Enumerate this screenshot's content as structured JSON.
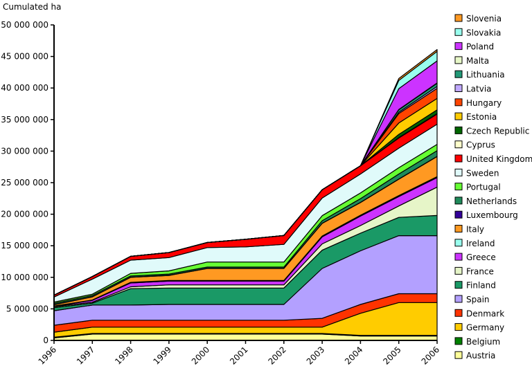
{
  "chart_data": {
    "type": "area",
    "stacked": true,
    "title": "",
    "ylabel": "Cumulated ha",
    "xlabel": "",
    "ylim": [
      0,
      50000000
    ],
    "yticks": [
      0,
      5000000,
      10000000,
      15000000,
      20000000,
      25000000,
      30000000,
      35000000,
      40000000,
      45000000,
      50000000
    ],
    "ytick_labels": [
      "0",
      "5 000 000",
      "10 000 000",
      "15 000 000",
      "20 000 000",
      "25 000 000",
      "30 000 000",
      "35 000 000",
      "40 000 000",
      "45 000 000",
      "50 000 000"
    ],
    "categories": [
      "1996",
      "1997",
      "1998",
      "1999",
      "2000",
      "2001",
      "2002",
      "2003",
      "2004",
      "2005",
      "2006"
    ],
    "legend_position": "right",
    "series": [
      {
        "name": "Austria",
        "color": "#ffff99",
        "values": [
          400000,
          1000000,
          1000000,
          1000000,
          1000000,
          1000000,
          1000000,
          1000000,
          700000,
          700000,
          700000
        ]
      },
      {
        "name": "Belgium",
        "color": "#008000",
        "values": [
          100000,
          100000,
          100000,
          100000,
          100000,
          100000,
          100000,
          100000,
          100000,
          100000,
          100000
        ]
      },
      {
        "name": "Germany",
        "color": "#ffcc00",
        "values": [
          800000,
          1000000,
          1000000,
          1000000,
          1000000,
          1000000,
          1000000,
          1000000,
          3500000,
          5200000,
          5200000
        ]
      },
      {
        "name": "Denmark",
        "color": "#ff3300",
        "values": [
          1100000,
          1100000,
          1100000,
          1100000,
          1100000,
          1100000,
          1100000,
          1400000,
          1400000,
          1400000,
          1400000
        ]
      },
      {
        "name": "Spain",
        "color": "#b3a0ff",
        "values": [
          2300000,
          2400000,
          2400000,
          2500000,
          2500000,
          2500000,
          2500000,
          7900000,
          8500000,
          9200000,
          9200000
        ]
      },
      {
        "name": "Finland",
        "color": "#1a9966",
        "values": [
          500000,
          300000,
          2600000,
          2600000,
          2600000,
          2600000,
          2600000,
          2900000,
          2800000,
          2900000,
          3200000
        ]
      },
      {
        "name": "France",
        "color": "#e6f5c8",
        "values": [
          150000,
          150000,
          300000,
          500000,
          500000,
          500000,
          500000,
          1000000,
          1200000,
          1800000,
          4500000
        ]
      },
      {
        "name": "Greece",
        "color": "#cc33ff",
        "values": [
          50000,
          300000,
          600000,
          600000,
          600000,
          600000,
          600000,
          1100000,
          1500000,
          1500000,
          1500000
        ]
      },
      {
        "name": "Ireland",
        "color": "#99ffee",
        "values": [
          50000,
          50000,
          100000,
          100000,
          100000,
          100000,
          100000,
          150000,
          150000,
          150000,
          150000
        ]
      },
      {
        "name": "Italy",
        "color": "#ff9922",
        "values": [
          200000,
          500000,
          800000,
          800000,
          1900000,
          1900000,
          1900000,
          2000000,
          2000000,
          2600000,
          3200000
        ]
      },
      {
        "name": "Luxembourg",
        "color": "#330099",
        "values": [
          20000,
          20000,
          20000,
          20000,
          20000,
          20000,
          20000,
          20000,
          20000,
          20000,
          20000
        ]
      },
      {
        "name": "Netherlands",
        "color": "#1f8a5a",
        "values": [
          200000,
          200000,
          200000,
          200000,
          200000,
          200000,
          200000,
          400000,
          600000,
          800000,
          900000
        ]
      },
      {
        "name": "Portugal",
        "color": "#66ff33",
        "values": [
          200000,
          200000,
          400000,
          500000,
          800000,
          800000,
          800000,
          800000,
          900000,
          1000000,
          1000000
        ]
      },
      {
        "name": "Sweden",
        "color": "#e0fafa",
        "values": [
          800000,
          2400000,
          2100000,
          2100000,
          2300000,
          2400000,
          2800000,
          2800000,
          3000000,
          3100000,
          3200000
        ]
      },
      {
        "name": "United Kingdom",
        "color": "#ff0000",
        "values": [
          300000,
          400000,
          600000,
          800000,
          800000,
          1200000,
          1400000,
          1300000,
          1300000,
          1600000,
          1600000
        ]
      },
      {
        "name": "Cyprus",
        "color": "#ffffcc",
        "values": [
          0,
          0,
          0,
          0,
          0,
          0,
          0,
          0,
          0,
          80000,
          80000
        ]
      },
      {
        "name": "Czech Republic",
        "color": "#006600",
        "values": [
          0,
          0,
          0,
          0,
          0,
          0,
          0,
          0,
          0,
          500000,
          600000
        ]
      },
      {
        "name": "Estonia",
        "color": "#ffcc00",
        "values": [
          0,
          0,
          0,
          0,
          0,
          0,
          0,
          0,
          0,
          1800000,
          1800000
        ]
      },
      {
        "name": "Hungary",
        "color": "#ff4400",
        "values": [
          0,
          0,
          0,
          0,
          0,
          0,
          0,
          0,
          0,
          1500000,
          1600000
        ]
      },
      {
        "name": "Latvia",
        "color": "#c0a8ff",
        "values": [
          0,
          0,
          0,
          0,
          0,
          0,
          0,
          0,
          0,
          200000,
          300000
        ]
      },
      {
        "name": "Lithuania",
        "color": "#229977",
        "values": [
          0,
          0,
          0,
          0,
          0,
          0,
          0,
          0,
          0,
          400000,
          500000
        ]
      },
      {
        "name": "Malta",
        "color": "#e8f8c8",
        "values": [
          0,
          0,
          0,
          0,
          0,
          0,
          0,
          0,
          0,
          50000,
          50000
        ]
      },
      {
        "name": "Poland",
        "color": "#cc33ff",
        "values": [
          0,
          0,
          0,
          0,
          0,
          0,
          0,
          0,
          0,
          3300000,
          3500000
        ]
      },
      {
        "name": "Slovakia",
        "color": "#99ffee",
        "values": [
          0,
          0,
          0,
          0,
          0,
          0,
          0,
          0,
          0,
          1300000,
          1500000
        ]
      },
      {
        "name": "Slovenia",
        "color": "#ff9922",
        "values": [
          0,
          0,
          0,
          0,
          0,
          0,
          0,
          0,
          0,
          300000,
          300000
        ]
      }
    ]
  }
}
